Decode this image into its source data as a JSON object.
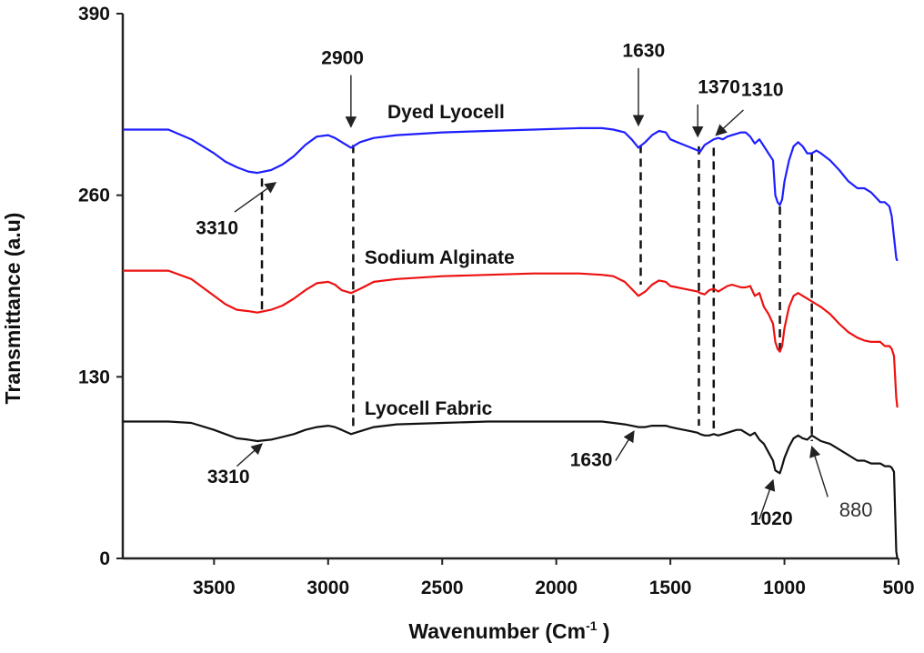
{
  "chart_data": {
    "type": "line",
    "xlabel": "Wavenumber (Cm",
    "xlabel_sup": "-1",
    "xlabel_tail": " )",
    "ylabel": "Transmittance (a.u)",
    "xlim": [
      3900,
      500
    ],
    "ylim": [
      0,
      390
    ],
    "xticks": [
      "3500",
      "3000",
      "2500",
      "2000",
      "1500",
      "1000",
      "500"
    ],
    "yticks": [
      "0",
      "130",
      "260",
      "390"
    ],
    "grid": false,
    "series": [
      {
        "name": "Dyed Lyocell",
        "color": "#1f1fff",
        "x": [
          3900,
          3700,
          3600,
          3500,
          3450,
          3400,
          3350,
          3310,
          3250,
          3200,
          3150,
          3100,
          3050,
          3000,
          2970,
          2940,
          2900,
          2860,
          2800,
          2700,
          2500,
          2300,
          2100,
          1900,
          1800,
          1750,
          1700,
          1670,
          1640,
          1610,
          1580,
          1550,
          1520,
          1500,
          1470,
          1440,
          1410,
          1380,
          1370,
          1350,
          1330,
          1310,
          1290,
          1270,
          1250,
          1230,
          1210,
          1190,
          1170,
          1150,
          1130,
          1110,
          1090,
          1070,
          1050,
          1040,
          1030,
          1020,
          1010,
          1000,
          980,
          960,
          940,
          920,
          900,
          880,
          860,
          840,
          800,
          760,
          720,
          680,
          650,
          620,
          580,
          560,
          540,
          530,
          520,
          510,
          505
        ],
        "y": [
          307,
          307,
          300,
          290,
          284,
          280,
          277,
          276,
          278,
          282,
          288,
          296,
          302,
          303,
          301,
          298,
          294,
          298,
          301,
          303,
          305,
          306,
          307,
          308,
          308,
          307,
          305,
          300,
          294,
          298,
          303,
          306,
          305,
          300,
          298,
          296,
          294,
          292,
          291,
          296,
          298,
          300,
          301,
          300,
          302,
          303,
          304,
          305,
          305,
          302,
          297,
          300,
          295,
          290,
          285,
          260,
          255,
          253,
          257,
          270,
          285,
          295,
          298,
          295,
          290,
          290,
          292,
          290,
          285,
          278,
          270,
          265,
          265,
          262,
          255,
          255,
          252,
          245,
          230,
          215,
          213
        ]
      },
      {
        "name": "Sodium Alginate",
        "color": "#ee1111",
        "x": [
          3900,
          3700,
          3600,
          3500,
          3450,
          3400,
          3350,
          3310,
          3250,
          3200,
          3150,
          3100,
          3050,
          3000,
          2970,
          2940,
          2900,
          2860,
          2800,
          2700,
          2500,
          2300,
          2100,
          1900,
          1800,
          1750,
          1700,
          1670,
          1640,
          1610,
          1580,
          1550,
          1520,
          1500,
          1470,
          1440,
          1410,
          1380,
          1370,
          1350,
          1330,
          1310,
          1290,
          1270,
          1250,
          1230,
          1210,
          1190,
          1170,
          1150,
          1130,
          1110,
          1090,
          1070,
          1050,
          1040,
          1030,
          1020,
          1010,
          1000,
          980,
          960,
          940,
          920,
          900,
          880,
          860,
          840,
          800,
          760,
          720,
          680,
          650,
          620,
          580,
          560,
          540,
          530,
          520,
          510,
          505
        ],
        "y": [
          206,
          206,
          200,
          188,
          182,
          178,
          177,
          176,
          178,
          181,
          186,
          192,
          197,
          198,
          196,
          192,
          190,
          193,
          198,
          200,
          202,
          203,
          204,
          204,
          203,
          202,
          198,
          193,
          188,
          191,
          196,
          199,
          198,
          195,
          194,
          193,
          192,
          191,
          190,
          189,
          192,
          193,
          191,
          193,
          195,
          196,
          195,
          194,
          194,
          195,
          188,
          190,
          180,
          175,
          168,
          155,
          150,
          148,
          152,
          165,
          180,
          188,
          190,
          188,
          186,
          184,
          182,
          180,
          175,
          168,
          162,
          158,
          156,
          155,
          155,
          152,
          152,
          150,
          145,
          115,
          108
        ]
      },
      {
        "name": "Lyocell Fabric",
        "color": "#111111",
        "x": [
          3900,
          3700,
          3600,
          3500,
          3450,
          3400,
          3350,
          3310,
          3250,
          3200,
          3150,
          3100,
          3050,
          3000,
          2970,
          2940,
          2900,
          2860,
          2800,
          2700,
          2500,
          2300,
          2100,
          1900,
          1800,
          1750,
          1700,
          1670,
          1640,
          1610,
          1580,
          1550,
          1520,
          1500,
          1470,
          1440,
          1410,
          1380,
          1370,
          1350,
          1330,
          1310,
          1290,
          1270,
          1250,
          1230,
          1210,
          1190,
          1170,
          1150,
          1130,
          1110,
          1090,
          1070,
          1050,
          1040,
          1030,
          1020,
          1010,
          1000,
          980,
          960,
          940,
          920,
          900,
          880,
          860,
          840,
          800,
          760,
          720,
          680,
          650,
          620,
          580,
          560,
          540,
          530,
          520,
          510,
          505
        ],
        "y": [
          98,
          98,
          97,
          92,
          89,
          86,
          85,
          84,
          85,
          87,
          89,
          92,
          94,
          95,
          94,
          92,
          89,
          91,
          94,
          96,
          97,
          98,
          98,
          98,
          98,
          97,
          96,
          95,
          94,
          94,
          95,
          95,
          95,
          94,
          93,
          92,
          91,
          90,
          89,
          88,
          88,
          89,
          88,
          89,
          90,
          91,
          92,
          92,
          90,
          88,
          90,
          85,
          82,
          76,
          70,
          63,
          62,
          61,
          66,
          72,
          80,
          86,
          88,
          86,
          85,
          88,
          86,
          84,
          82,
          78,
          74,
          70,
          70,
          68,
          68,
          66,
          66,
          65,
          62,
          5,
          0
        ]
      }
    ],
    "dashed_lines": [
      {
        "x": 3290,
        "y_top": 272,
        "y_bottom": 176
      },
      {
        "x": 2890,
        "y_top": 296,
        "y_bottom": 93
      },
      {
        "x": 1630,
        "y_top": 296,
        "y_bottom": 196
      },
      {
        "x": 1375,
        "y_top": 295,
        "y_bottom": 95
      },
      {
        "x": 1310,
        "y_top": 294,
        "y_bottom": 93
      },
      {
        "x": 1020,
        "y_top": 252,
        "y_bottom": 146
      },
      {
        "x": 880,
        "y_top": 290,
        "y_bottom": 84
      }
    ],
    "series_labels": [
      {
        "text": "Dyed Lyocell",
        "x": 2740,
        "y": 315
      },
      {
        "text": "Sodium Alginate",
        "x": 2840,
        "y": 211
      },
      {
        "text": "Lyocell Fabric",
        "x": 2840,
        "y": 103
      }
    ],
    "annotations": [
      {
        "text": "2900",
        "label_x": 3030,
        "label_y": 354,
        "arrow_from": [
          2900,
          346
        ],
        "arrow_to": [
          2900,
          309
        ]
      },
      {
        "text": "1630",
        "label_x": 1710,
        "label_y": 359,
        "arrow_from": [
          1640,
          351
        ],
        "arrow_to": [
          1640,
          310
        ]
      },
      {
        "text": "1370",
        "label_x": 1380,
        "label_y": 333,
        "arrow_from": [
          1380,
          325
        ],
        "arrow_to": [
          1380,
          302
        ]
      },
      {
        "text": "1310",
        "label_x": 1190,
        "label_y": 331,
        "arrow_from": [
          1180,
          321
        ],
        "arrow_to": [
          1300,
          303
        ]
      },
      {
        "text": "3310",
        "label_x": 3580,
        "label_y": 232,
        "arrow_from": [
          3410,
          248
        ],
        "arrow_to": [
          3230,
          269
        ]
      },
      {
        "text": "3310",
        "label_x": 3530,
        "label_y": 54,
        "arrow_from": [
          3400,
          66
        ],
        "arrow_to": [
          3290,
          82
        ]
      },
      {
        "text": "1630",
        "label_x": 1940,
        "label_y": 66,
        "arrow_from": [
          1740,
          70
        ],
        "arrow_to": [
          1660,
          91
        ]
      },
      {
        "text": "1020",
        "label_x": 1150,
        "label_y": 24,
        "arrow_from": [
          1110,
          28
        ],
        "arrow_to": [
          1050,
          56
        ]
      },
      {
        "text": "880",
        "label_x": 760,
        "label_y": 30,
        "light": true,
        "arrow_from": [
          810,
          44
        ],
        "arrow_to": [
          880,
          80
        ]
      }
    ]
  }
}
